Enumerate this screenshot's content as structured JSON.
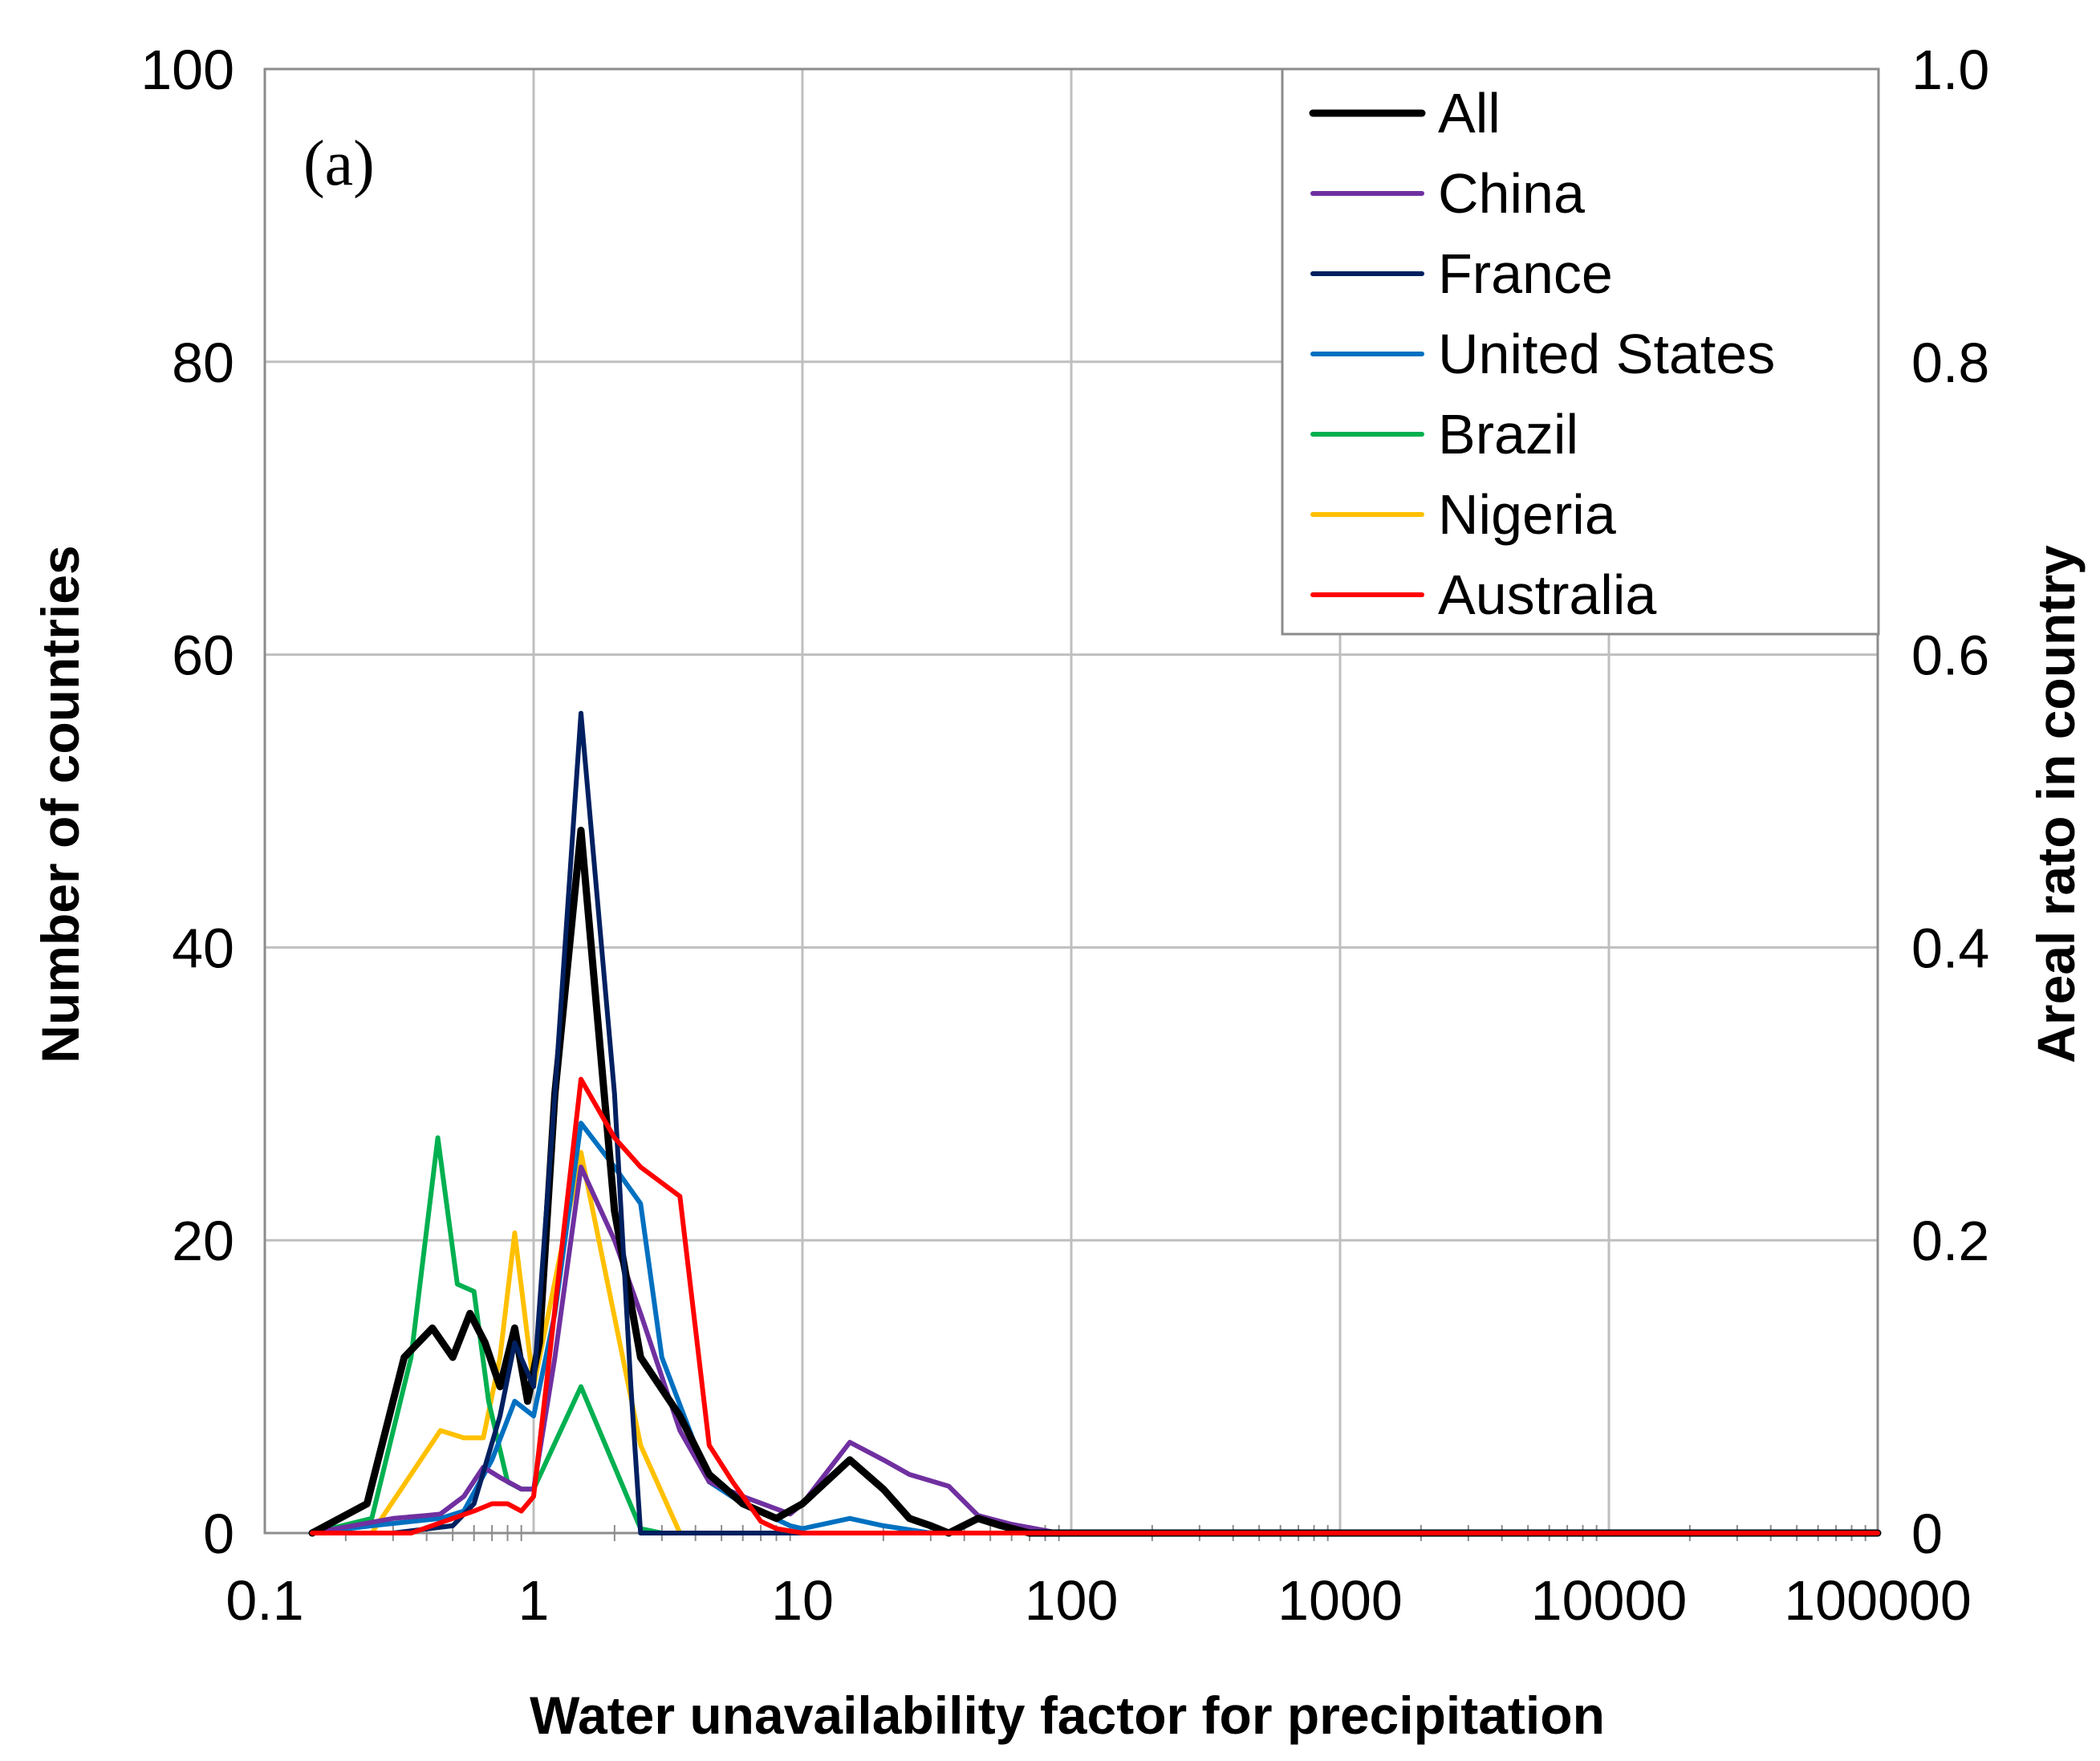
{
  "chart_data": {
    "type": "line",
    "panel_label": "(a)",
    "xlabel": "Water unavailability factor for precipitation",
    "ylabel": "Number of countries",
    "y2label": "Areal rato in country",
    "x_scale": "log",
    "xlim": [
      0.1,
      100000
    ],
    "ylim": [
      0,
      100
    ],
    "y2lim": [
      0,
      1.0
    ],
    "x_ticks": [
      0.1,
      1,
      10,
      100,
      1000,
      10000,
      100000
    ],
    "x_tick_labels": [
      "0.1",
      "1",
      "10",
      "100",
      "1000",
      "10000",
      "100000"
    ],
    "y_ticks": [
      0,
      20,
      40,
      60,
      80,
      100
    ],
    "y_tick_labels": [
      "0",
      "20",
      "40",
      "60",
      "80",
      "100"
    ],
    "y2_ticks": [
      0,
      0.2,
      0.4,
      0.6,
      0.8,
      1.0
    ],
    "y2_tick_labels": [
      "0",
      "0.2",
      "0.4",
      "0.6",
      "0.8",
      "1.0"
    ],
    "grid": true,
    "legend_position": "top-right",
    "series": [
      {
        "name": "All",
        "axis": "left",
        "color": "#000000",
        "bold": true,
        "x": [
          0.15,
          0.24,
          0.33,
          0.42,
          0.5,
          0.58,
          0.66,
          0.75,
          0.85,
          0.95,
          1.05,
          1.2,
          1.5,
          2.0,
          2.5,
          3.5,
          4.5,
          6,
          8,
          10,
          15,
          20,
          25,
          30,
          35,
          45,
          55,
          70,
          100,
          1000,
          100000
        ],
        "values": [
          0,
          2,
          12,
          14,
          12,
          15,
          13,
          10,
          14,
          9,
          13,
          30,
          48,
          22,
          12,
          8,
          4,
          2,
          1,
          2,
          5,
          3,
          1,
          0.5,
          0,
          1,
          0.5,
          0,
          0,
          0,
          0
        ]
      },
      {
        "name": "China",
        "axis": "right",
        "color": "#7030a0",
        "bold": false,
        "x": [
          0.15,
          0.3,
          0.4,
          0.45,
          0.55,
          0.65,
          0.75,
          0.9,
          1.0,
          1.2,
          1.5,
          2.0,
          2.5,
          3.5,
          4.5,
          6,
          9,
          10,
          15,
          20,
          25,
          35,
          45,
          60,
          90,
          1000,
          100000
        ],
        "values": [
          0,
          0.01,
          0.012,
          0.013,
          0.025,
          0.045,
          0.038,
          0.03,
          0.03,
          0.12,
          0.25,
          0.2,
          0.15,
          0.07,
          0.035,
          0.025,
          0.013,
          0.02,
          0.062,
          0.05,
          0.04,
          0.032,
          0.012,
          0.006,
          0,
          0,
          0
        ]
      },
      {
        "name": "France",
        "axis": "right",
        "color": "#002060",
        "bold": false,
        "x": [
          0.15,
          0.3,
          0.5,
          0.6,
          0.75,
          0.85,
          1.0,
          1.2,
          1.5,
          2.0,
          2.3,
          2.5,
          3,
          10,
          100000
        ],
        "values": [
          0,
          0,
          0.005,
          0.02,
          0.08,
          0.13,
          0.1,
          0.3,
          0.56,
          0.3,
          0.1,
          0,
          0,
          0,
          0
        ]
      },
      {
        "name": "United States",
        "axis": "right",
        "color": "#0070c0",
        "bold": false,
        "x": [
          0.15,
          0.25,
          0.45,
          0.55,
          0.7,
          0.85,
          1.0,
          1.2,
          1.5,
          2.0,
          2.5,
          3.0,
          4.5,
          6,
          9,
          10,
          15,
          20,
          30,
          100,
          100000
        ],
        "values": [
          0,
          0.005,
          0.01,
          0.015,
          0.05,
          0.09,
          0.08,
          0.15,
          0.28,
          0.25,
          0.225,
          0.12,
          0.035,
          0.02,
          0.005,
          0.003,
          0.01,
          0.005,
          0,
          0,
          0
        ]
      },
      {
        "name": "Brazil",
        "axis": "right",
        "color": "#00b050",
        "bold": false,
        "x": [
          0.15,
          0.25,
          0.35,
          0.44,
          0.52,
          0.6,
          0.68,
          0.8,
          0.9,
          1.0,
          1.5,
          2.5,
          3,
          10,
          100000
        ],
        "values": [
          0,
          0.01,
          0.12,
          0.27,
          0.17,
          0.165,
          0.09,
          0.035,
          0.03,
          0.03,
          0.1,
          0.003,
          0,
          0,
          0
        ]
      },
      {
        "name": "Nigeria",
        "axis": "right",
        "color": "#ffc000",
        "bold": false,
        "x": [
          0.15,
          0.25,
          0.45,
          0.55,
          0.65,
          0.75,
          0.85,
          1.0,
          1.5,
          2.5,
          3.5,
          5,
          10,
          100000
        ],
        "values": [
          0,
          0,
          0.07,
          0.065,
          0.065,
          0.12,
          0.205,
          0.1,
          0.26,
          0.06,
          0,
          0,
          0,
          0
        ]
      },
      {
        "name": "Australia",
        "axis": "right",
        "color": "#ff0000",
        "bold": false,
        "x": [
          0.15,
          0.35,
          0.5,
          0.6,
          0.7,
          0.8,
          0.9,
          1.0,
          1.5,
          2.0,
          2.5,
          3.5,
          4.5,
          5.5,
          7,
          8,
          10,
          100,
          100000
        ],
        "values": [
          0,
          0,
          0.01,
          0.015,
          0.02,
          0.02,
          0.015,
          0.025,
          0.31,
          0.27,
          0.25,
          0.23,
          0.06,
          0.035,
          0.008,
          0.003,
          0,
          0,
          0
        ]
      }
    ]
  }
}
